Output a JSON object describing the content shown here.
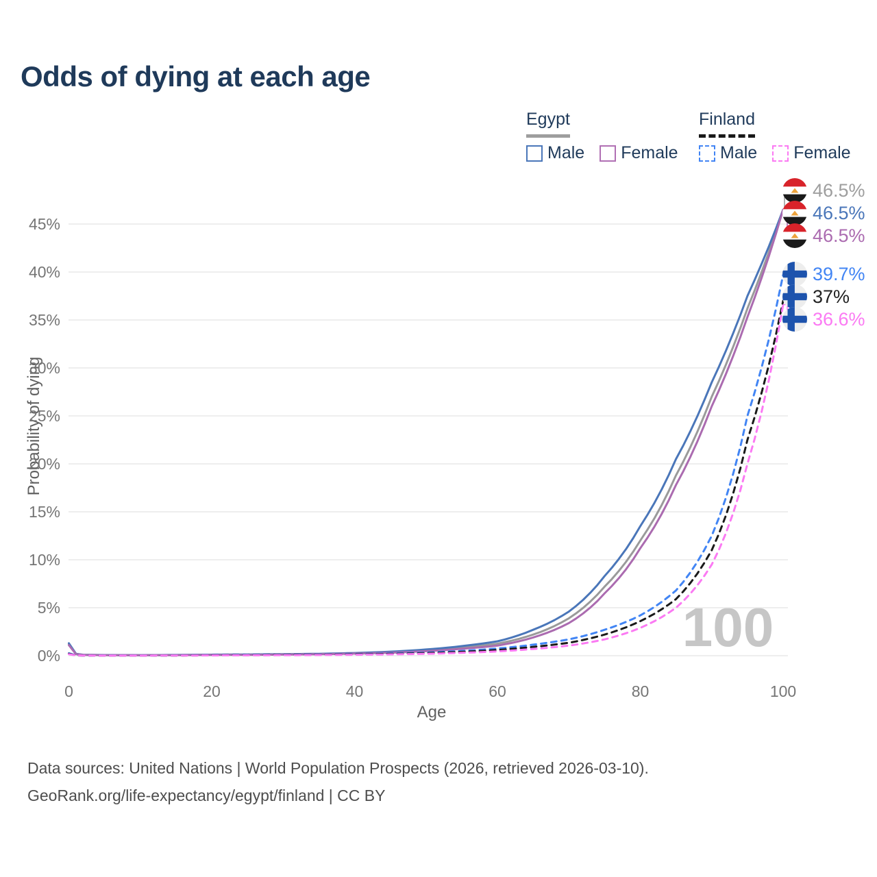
{
  "title": "Odds of dying at each age",
  "legend": {
    "groups": [
      {
        "key": "egypt",
        "country": "Egypt",
        "line_style": "solid",
        "underline_color": "#9e9e9e",
        "items": [
          {
            "key": "egypt-male",
            "label": "Male",
            "color": "#4a76b9",
            "dashed": false
          },
          {
            "key": "egypt-female",
            "label": "Female",
            "color": "#b06fb3",
            "dashed": false
          }
        ]
      },
      {
        "key": "finland",
        "country": "Finland",
        "line_style": "dashed",
        "underline_color": "#1a1a1a",
        "items": [
          {
            "key": "finland-male",
            "label": "Male",
            "color": "#4285f4",
            "dashed": true
          },
          {
            "key": "finland-female",
            "label": "Female",
            "color": "#fb7af3",
            "dashed": true
          }
        ]
      }
    ]
  },
  "chart_data": {
    "type": "line",
    "title": "Odds of dying at each age",
    "xlabel": "Age",
    "ylabel": "Probability of dying",
    "x_ticks": [
      0,
      20,
      40,
      60,
      80,
      100
    ],
    "x_tick_labels": [
      "0",
      "20",
      "40",
      "60",
      "80",
      "100"
    ],
    "y_ticks": [
      0,
      5,
      10,
      15,
      20,
      25,
      30,
      35,
      40,
      45
    ],
    "y_tick_labels": [
      "0%",
      "5%",
      "10%",
      "15%",
      "20%",
      "25%",
      "30%",
      "35%",
      "40%",
      "45%"
    ],
    "xlim": [
      0,
      100
    ],
    "ylim": [
      0,
      48
    ],
    "grid": true,
    "unit": "percent",
    "ages": [
      0,
      1,
      2,
      5,
      10,
      15,
      20,
      25,
      30,
      35,
      40,
      45,
      50,
      55,
      60,
      65,
      70,
      75,
      80,
      85,
      90,
      95,
      100
    ],
    "series": [
      {
        "key": "egypt-both",
        "name": "Egypt (both sexes)",
        "color": "#9a9a9a",
        "dashed": false,
        "values": [
          1.2,
          0.18,
          0.09,
          0.06,
          0.05,
          0.07,
          0.09,
          0.11,
          0.14,
          0.18,
          0.25,
          0.36,
          0.55,
          0.85,
          1.25,
          2.2,
          3.9,
          7.2,
          12.0,
          18.8,
          27.0,
          36.2,
          46.5
        ]
      },
      {
        "key": "egypt-male",
        "name": "Egypt Male",
        "color": "#4a76b9",
        "dashed": false,
        "values": [
          1.3,
          0.2,
          0.1,
          0.07,
          0.06,
          0.08,
          0.11,
          0.13,
          0.16,
          0.2,
          0.28,
          0.42,
          0.65,
          1.0,
          1.5,
          2.7,
          4.6,
          8.3,
          13.5,
          20.5,
          28.5,
          37.5,
          46.5
        ]
      },
      {
        "key": "egypt-female",
        "name": "Egypt Female",
        "color": "#ab6bb0",
        "dashed": false,
        "values": [
          1.1,
          0.16,
          0.08,
          0.055,
          0.045,
          0.06,
          0.08,
          0.09,
          0.12,
          0.16,
          0.22,
          0.31,
          0.47,
          0.72,
          1.05,
          1.9,
          3.4,
          6.5,
          11.2,
          17.8,
          26.0,
          35.3,
          46.5
        ]
      },
      {
        "key": "finland-male",
        "name": "Finland Male",
        "color": "#4285f4",
        "dashed": true,
        "values": [
          0.25,
          0.04,
          0.02,
          0.012,
          0.012,
          0.03,
          0.06,
          0.08,
          0.1,
          0.13,
          0.17,
          0.24,
          0.33,
          0.5,
          0.75,
          1.15,
          1.7,
          2.7,
          4.2,
          6.8,
          12.5,
          25.0,
          39.7
        ]
      },
      {
        "key": "finland-both",
        "name": "Finland (both sexes)",
        "color": "#1a1a1a",
        "dashed": true,
        "values": [
          0.2,
          0.03,
          0.015,
          0.01,
          0.01,
          0.02,
          0.04,
          0.06,
          0.08,
          0.1,
          0.14,
          0.19,
          0.27,
          0.4,
          0.6,
          0.92,
          1.35,
          2.2,
          3.6,
          5.9,
          11.0,
          22.5,
          37.0
        ]
      },
      {
        "key": "finland-female",
        "name": "Finland Female",
        "color": "#fb7af3",
        "dashed": true,
        "values": [
          0.16,
          0.025,
          0.012,
          0.009,
          0.009,
          0.015,
          0.03,
          0.04,
          0.05,
          0.07,
          0.1,
          0.14,
          0.2,
          0.3,
          0.45,
          0.7,
          1.05,
          1.7,
          2.9,
          5.0,
          9.5,
          20.0,
          36.6
        ]
      }
    ],
    "end_labels": [
      {
        "series": "egypt-both",
        "flag": "egypt",
        "value_text": "46.5%",
        "value": 46.5,
        "color": "#9e9e9e"
      },
      {
        "series": "egypt-male",
        "flag": "egypt",
        "value_text": "46.5%",
        "value": 46.5,
        "color": "#4a76b9"
      },
      {
        "series": "egypt-female",
        "flag": "egypt",
        "value_text": "46.5%",
        "value": 46.5,
        "color": "#ab6bb0"
      },
      {
        "series": "finland-male",
        "flag": "finland",
        "value_text": "39.7%",
        "value": 39.7,
        "color": "#4285f4"
      },
      {
        "series": "finland-both",
        "flag": "finland",
        "value_text": "37%",
        "value": 37.0,
        "color": "#212121"
      },
      {
        "series": "finland-female",
        "flag": "finland",
        "value_text": "36.6%",
        "value": 36.6,
        "color": "#fb7af3"
      }
    ],
    "legend_position": "top-right"
  },
  "watermark": "100",
  "footer": {
    "line1": "Data sources: United Nations | World Population Prospects (2026, retrieved 2026-03-10).",
    "line2": "GeoRank.org/life-expectancy/egypt/finland | CC BY"
  }
}
